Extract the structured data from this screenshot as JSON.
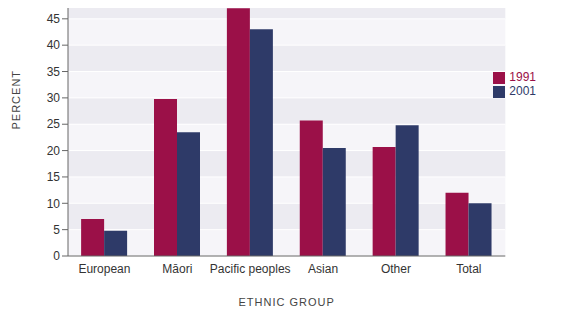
{
  "chart_data": {
    "type": "bar",
    "x_label": "ETHNIC GROUP",
    "y_label": "PERCENT",
    "categories": [
      "European",
      "Māori",
      "Pacific peoples",
      "Asian",
      "Other",
      "Total"
    ],
    "series": [
      {
        "name": "1991",
        "color": "#9b1048",
        "values": [
          7,
          29.8,
          47,
          25.7,
          20.7,
          12
        ]
      },
      {
        "name": "2001",
        "color": "#2e3a68",
        "values": [
          4.8,
          23.5,
          43,
          20.5,
          24.8,
          10
        ]
      }
    ],
    "ylim": [
      0,
      48
    ],
    "yticks": [
      0,
      5,
      10,
      15,
      20,
      25,
      30,
      35,
      40,
      45
    ],
    "grid": true,
    "legend": "upper right"
  }
}
